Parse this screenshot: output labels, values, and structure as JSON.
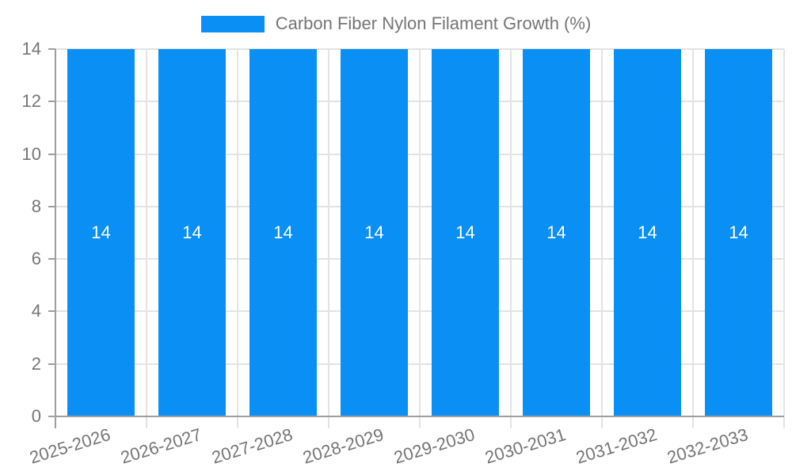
{
  "chart_data": {
    "type": "bar",
    "title": "Carbon Fiber Nylon Filament Growth (%)",
    "categories": [
      "2025-2026",
      "2026-2027",
      "2027-2028",
      "2028-2029",
      "2029-2030",
      "2030-2031",
      "2031-2032",
      "2032-2033"
    ],
    "values": [
      14,
      14,
      14,
      14,
      14,
      14,
      14,
      14
    ],
    "bar_value_labels": [
      "14",
      "14",
      "14",
      "14",
      "14",
      "14",
      "14",
      "14"
    ],
    "xlabel": "",
    "ylabel": "",
    "ylim": [
      0,
      14
    ],
    "yticks": [
      0,
      2,
      4,
      6,
      8,
      10,
      12,
      14
    ],
    "grid": true,
    "legend_position": "top-center",
    "colors": {
      "bar": "#0a8ff4",
      "bar_value_label": "#ffffff",
      "axis": "#9e9e9e",
      "gridline": "#e3e3e3",
      "tick_text": "#757575",
      "legend_text": "#757575",
      "background": "#ffffff"
    }
  },
  "legend": {
    "label": "Carbon Fiber Nylon Filament Growth (%)"
  }
}
